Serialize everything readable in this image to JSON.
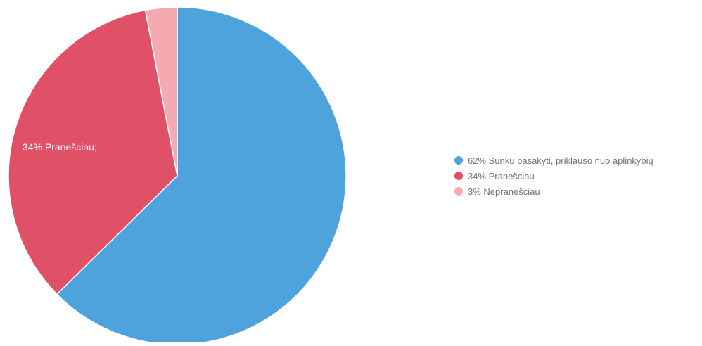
{
  "chart_data": {
    "type": "pie",
    "title": "",
    "slices": [
      {
        "label": "Sunku pasakyti, priklauso nuo aplinkybių",
        "value": 62,
        "color": "#4ea3dd"
      },
      {
        "label": "Praneščiau",
        "value": 34,
        "color": "#e05067"
      },
      {
        "label": "Nepraneščiau",
        "value": 3,
        "color": "#f4aab0"
      }
    ],
    "data_labels": [
      {
        "slice": 1,
        "text": "34% Pranešciau;"
      }
    ],
    "legend": {
      "position": "right",
      "items": [
        "62% Sunku pasakyti, priklauso nuo aplinkybių",
        "34% Pranešciau",
        "3% Nepranešciau"
      ]
    }
  }
}
